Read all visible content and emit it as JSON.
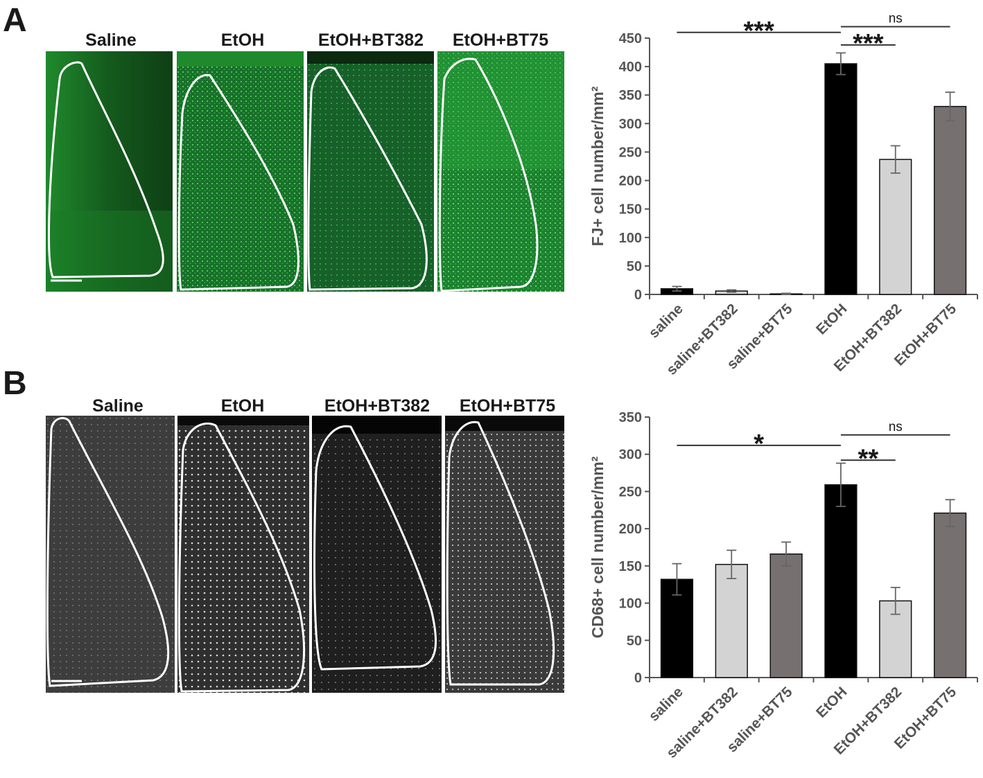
{
  "panels": [
    {
      "letter": "A",
      "image_labels": [
        "Saline",
        "EtOH",
        "EtOH+BT382",
        "EtOH+BT75"
      ],
      "image_style": "green-fluorescence"
    },
    {
      "letter": "B",
      "image_labels": [
        "Saline",
        "EtOH",
        "EtOH+BT382",
        "EtOH+BT75"
      ],
      "image_style": "grayscale"
    }
  ],
  "colors": {
    "black_bar": "#000000",
    "light_bar": "#d3d3d3",
    "dark_gray_bar": "#767070",
    "green_tissue": "#1f8a2c",
    "gray_tissue": "#3a3a3a"
  },
  "chart_data": [
    {
      "type": "bar",
      "categories": [
        "saline",
        "saline+BT382",
        "saline+BT75",
        "EtOH",
        "EtOH+BT382",
        "EtOH+BT75"
      ],
      "values": [
        10,
        6,
        1,
        405,
        237,
        330
      ],
      "errors": [
        4,
        2,
        1,
        19,
        24,
        25
      ],
      "bar_colors": [
        "#000000",
        "#d3d3d3",
        "#767070",
        "#000000",
        "#d3d3d3",
        "#767070"
      ],
      "title": "",
      "xlabel": "",
      "ylabel": "FJ+ cell number/mm²",
      "ylim": [
        0,
        450
      ],
      "yticks": [
        0,
        50,
        100,
        150,
        200,
        250,
        300,
        350,
        400,
        450
      ],
      "grid": false,
      "significance": [
        {
          "from": 0,
          "to": 3,
          "label": "***",
          "level": 460
        },
        {
          "from": 3,
          "to": 5,
          "label": "ns",
          "level": 470
        },
        {
          "from": 3,
          "to": 4,
          "label": "***",
          "level": 438
        }
      ]
    },
    {
      "type": "bar",
      "categories": [
        "saline",
        "saline+BT382",
        "saline+BT75",
        "EtOH",
        "EtOH+BT382",
        "EtOH+BT75"
      ],
      "values": [
        132,
        152,
        166,
        259,
        103,
        221
      ],
      "errors": [
        21,
        19,
        16,
        29,
        18,
        18
      ],
      "bar_colors": [
        "#000000",
        "#d3d3d3",
        "#767070",
        "#000000",
        "#d3d3d3",
        "#767070"
      ],
      "title": "",
      "xlabel": "",
      "ylabel": "CD68+ cell number/mm²",
      "ylim": [
        0,
        350
      ],
      "yticks": [
        0,
        50,
        100,
        150,
        200,
        250,
        300,
        350
      ],
      "grid": false,
      "significance": [
        {
          "from": 0,
          "to": 3,
          "label": "*",
          "level": 312
        },
        {
          "from": 3,
          "to": 5,
          "label": "ns",
          "level": 326
        },
        {
          "from": 3,
          "to": 4,
          "label": "**",
          "level": 292
        }
      ]
    }
  ]
}
